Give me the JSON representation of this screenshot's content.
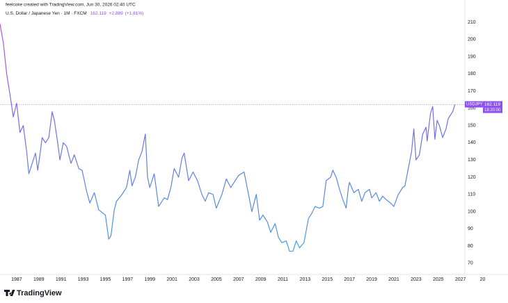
{
  "header": {
    "caption": "feelcoke created with TradingView.com, Jun 30, 2026 02:40 UTC",
    "symbol": "U.S. Dollar / Japanese Yen · 1M · FXCM",
    "change": "+2.889",
    "change_pct": "(+1.81%)"
  },
  "price_label": {
    "symbol": "USDJPY",
    "countdown": "18:20:00"
  },
  "footer": {
    "brand": "TradingView"
  },
  "chart_data": {
    "type": "line",
    "x": [
      1985.5,
      1985.8,
      1986.1,
      1986.4,
      1986.7,
      1987.0,
      1987.3,
      1987.6,
      1987.9,
      1988.1,
      1988.4,
      1988.7,
      1988.9,
      1989.1,
      1989.3,
      1989.6,
      1989.9,
      1990.2,
      1990.4,
      1990.7,
      1990.9,
      1991.2,
      1991.5,
      1991.9,
      1992.2,
      1992.6,
      1992.9,
      1993.3,
      1993.6,
      1994.0,
      1994.4,
      1994.8,
      1995.0,
      1995.3,
      1995.5,
      1995.8,
      1996.0,
      1996.5,
      1996.9,
      1997.2,
      1997.4,
      1997.7,
      1998.0,
      1998.3,
      1998.6,
      1998.8,
      1999.0,
      1999.4,
      1999.8,
      2000.3,
      2000.6,
      2000.9,
      2001.2,
      2001.6,
      2001.9,
      2002.1,
      2002.5,
      2002.9,
      2003.3,
      2003.7,
      2004.0,
      2004.3,
      2004.7,
      2005.0,
      2005.5,
      2005.9,
      2006.3,
      2006.7,
      2007.0,
      2007.5,
      2007.9,
      2008.2,
      2008.6,
      2008.9,
      2009.2,
      2009.6,
      2009.9,
      2010.3,
      2010.6,
      2010.9,
      2011.3,
      2011.6,
      2011.9,
      2012.2,
      2012.5,
      2012.9,
      2013.3,
      2013.6,
      2013.9,
      2014.3,
      2014.6,
      2014.9,
      2015.3,
      2015.5,
      2015.8,
      2016.1,
      2016.4,
      2016.7,
      2016.9,
      2017.0,
      2017.4,
      2017.8,
      2018.1,
      2018.4,
      2018.8,
      2019.0,
      2019.4,
      2019.7,
      2020.0,
      2020.3,
      2020.7,
      2021.0,
      2021.4,
      2021.8,
      2022.0,
      2022.3,
      2022.6,
      2022.8,
      2023.0,
      2023.3,
      2023.6,
      2023.9,
      2024.0,
      2024.3,
      2024.5,
      2024.7,
      2024.9,
      2025.1,
      2025.4,
      2025.7,
      2025.9,
      2026.1,
      2026.3,
      2026.5
    ],
    "series": [
      {
        "name": "USDJPY",
        "colors": [
          "#c04ce6",
          "#6f6fe8",
          "#3aa8dc"
        ],
        "values": [
          209,
          198,
          180,
          168,
          155,
          163,
          146,
          150,
          135,
          122,
          128,
          134,
          124,
          133,
          143,
          140,
          143,
          158,
          153,
          140,
          130,
          140,
          138,
          128,
          133,
          125,
          124,
          112,
          105,
          111,
          101,
          99,
          98,
          84,
          86,
          101,
          106,
          110,
          114,
          124,
          115,
          120,
          130,
          135,
          145,
          120,
          114,
          122,
          103,
          108,
          107,
          114,
          125,
          120,
          131,
          134,
          118,
          123,
          118,
          110,
          106,
          111,
          110,
          102,
          110,
          119,
          114,
          118,
          121,
          123,
          110,
          100,
          110,
          95,
          98,
          94,
          88,
          93,
          85,
          82,
          83,
          77,
          77,
          83,
          79,
          82,
          96,
          99,
          103,
          102,
          103,
          118,
          120,
          124,
          120,
          113,
          107,
          102,
          114,
          117,
          111,
          113,
          106,
          111,
          113,
          108,
          111,
          106,
          109,
          107,
          105,
          103,
          110,
          114,
          115,
          125,
          135,
          148,
          130,
          133,
          145,
          149,
          141,
          157,
          161,
          142,
          153,
          150,
          143,
          148,
          154,
          156,
          158,
          162.119
        ]
      }
    ],
    "xlim": [
      1985.5,
      2027.4
    ],
    "ylim": [
      63.5,
      214
    ],
    "xticks": [
      1987,
      1989,
      1991,
      1993,
      1995,
      1997,
      1999,
      2001,
      2003,
      2005,
      2007,
      2009,
      2011,
      2013,
      2015,
      2017,
      2019,
      2021,
      2023,
      2025,
      2027,
      {
        "value": 2029,
        "label": "20"
      }
    ],
    "yticks": [
      70,
      80,
      90,
      100,
      110,
      120,
      130,
      140,
      150,
      160,
      170,
      180,
      190,
      200,
      210
    ],
    "grid": false,
    "last_price_line": true
  }
}
